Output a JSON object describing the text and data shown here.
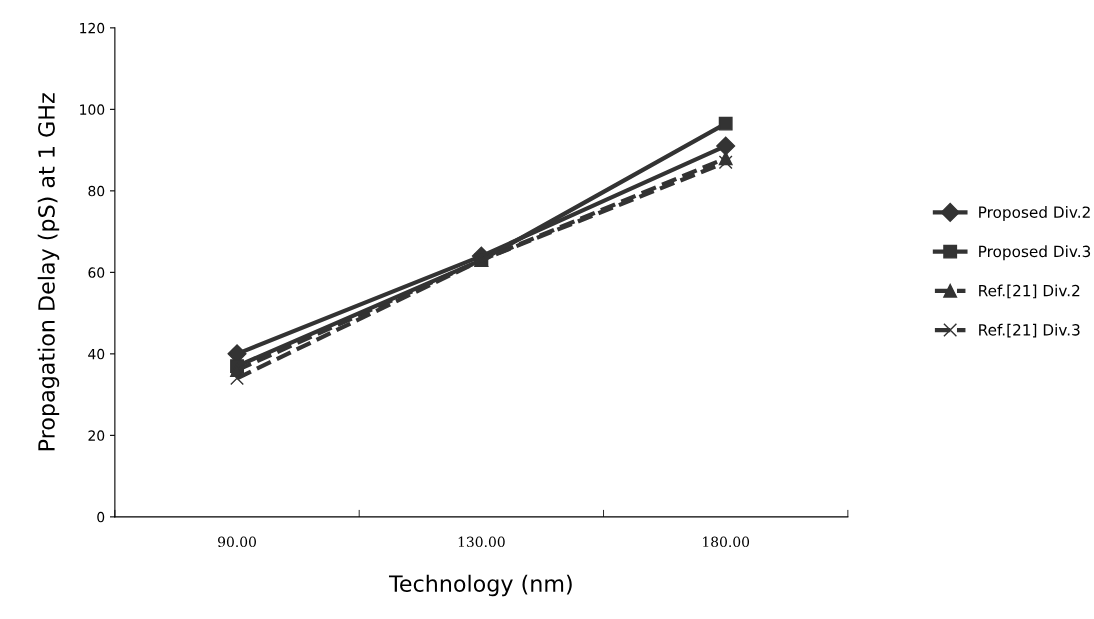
{
  "chart_data": {
    "type": "line",
    "xlabel": "Technology (nm)",
    "ylabel": "Propagation Delay (pS) at 1 GHz",
    "categories": [
      "90.00",
      "130.00",
      "180.00"
    ],
    "series": [
      {
        "name": "Proposed Div.2",
        "color": "#333333",
        "values": [
          40,
          64,
          91
        ],
        "marker": "diamond",
        "line_style": "solid"
      },
      {
        "name": "Proposed Div.3",
        "color": "#333333",
        "values": [
          37,
          63,
          96.5
        ],
        "marker": "square",
        "line_style": "solid"
      },
      {
        "name": "Ref.[21] Div.2",
        "color": "#333333",
        "values": [
          36,
          63,
          88
        ],
        "marker": "triangle",
        "line_style": "dashed"
      },
      {
        "name": "Ref.[21] Div.3",
        "color": "#333333",
        "values": [
          34,
          63,
          87
        ],
        "marker": "cross",
        "line_style": "dashed"
      }
    ],
    "ylim": [
      0,
      120
    ],
    "yticks": [
      0,
      20,
      40,
      60,
      80,
      100,
      120
    ],
    "grid": false,
    "legend": "right"
  }
}
